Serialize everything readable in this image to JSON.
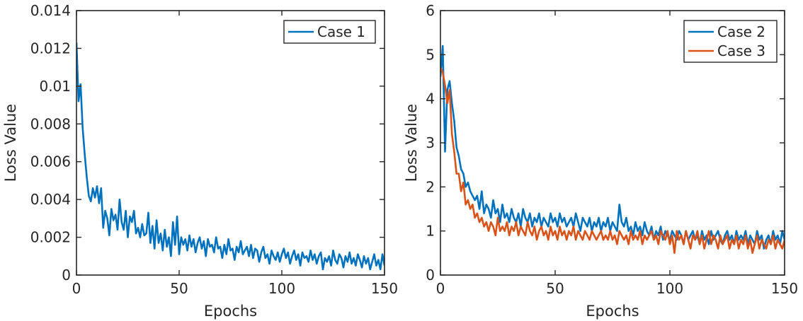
{
  "chart_data": [
    {
      "type": "line",
      "xlabel": "Epochs",
      "ylabel": "Loss Value",
      "xlim": [
        0,
        150
      ],
      "ylim": [
        0,
        0.014
      ],
      "xticks": [
        0,
        50,
        100,
        150
      ],
      "xtick_labels": [
        "0",
        "50",
        "100",
        "150"
      ],
      "yticks": [
        0,
        0.002,
        0.004,
        0.006,
        0.008,
        0.01,
        0.012,
        0.014
      ],
      "ytick_labels": [
        "0",
        "0.002",
        "0.004",
        "0.006",
        "0.008",
        "0.01",
        "0.012",
        "0.014"
      ],
      "grid": false,
      "legend_position": "top-right",
      "series": [
        {
          "name": "Case 1",
          "color": "#0072BD",
          "x": [
            0,
            1,
            2,
            3,
            4,
            5,
            6,
            7,
            8,
            9,
            10,
            11,
            12,
            13,
            14,
            15,
            16,
            17,
            18,
            19,
            20,
            21,
            22,
            23,
            24,
            25,
            26,
            27,
            28,
            29,
            30,
            31,
            32,
            33,
            34,
            35,
            36,
            37,
            38,
            39,
            40,
            41,
            42,
            43,
            44,
            45,
            46,
            47,
            48,
            49,
            50,
            51,
            52,
            53,
            54,
            55,
            56,
            57,
            58,
            59,
            60,
            61,
            62,
            63,
            64,
            65,
            66,
            67,
            68,
            69,
            70,
            71,
            72,
            73,
            74,
            75,
            76,
            77,
            78,
            79,
            80,
            81,
            82,
            83,
            84,
            85,
            86,
            87,
            88,
            89,
            90,
            91,
            92,
            93,
            94,
            95,
            96,
            97,
            98,
            99,
            100,
            101,
            102,
            103,
            104,
            105,
            106,
            107,
            108,
            109,
            110,
            111,
            112,
            113,
            114,
            115,
            116,
            117,
            118,
            119,
            120,
            121,
            122,
            123,
            124,
            125,
            126,
            127,
            128,
            129,
            130,
            131,
            132,
            133,
            134,
            135,
            136,
            137,
            138,
            139,
            140,
            141,
            142,
            143,
            144,
            145,
            146,
            147,
            148,
            149,
            150
          ],
          "y": [
            0.0123,
            0.0092,
            0.0101,
            0.0078,
            0.0064,
            0.0052,
            0.0042,
            0.0039,
            0.0046,
            0.0041,
            0.0047,
            0.0038,
            0.0046,
            0.0025,
            0.0034,
            0.003,
            0.0021,
            0.0035,
            0.0029,
            0.0032,
            0.0024,
            0.004,
            0.0028,
            0.0024,
            0.0034,
            0.002,
            0.0031,
            0.0028,
            0.0034,
            0.0022,
            0.0025,
            0.002,
            0.0027,
            0.0021,
            0.0022,
            0.0033,
            0.0017,
            0.0026,
            0.0014,
            0.0029,
            0.0017,
            0.0022,
            0.0013,
            0.0024,
            0.0015,
            0.002,
            0.001,
            0.0028,
            0.0016,
            0.0031,
            0.0011,
            0.002,
            0.0016,
            0.0019,
            0.0013,
            0.0021,
            0.0015,
            0.0019,
            0.0012,
            0.0017,
            0.002,
            0.0014,
            0.0018,
            0.001,
            0.0019,
            0.0015,
            0.0016,
            0.0012,
            0.002,
            0.0014,
            0.0015,
            0.0009,
            0.0016,
            0.0011,
            0.0019,
            0.0013,
            0.0014,
            0.0008,
            0.0015,
            0.0012,
            0.0018,
            0.0011,
            0.0013,
            0.0015,
            0.001,
            0.0016,
            0.0009,
            0.0014,
            0.0013,
            0.0007,
            0.0012,
            0.0015,
            0.0009,
            0.0011,
            0.0006,
            0.0013,
            0.001,
            0.0008,
            0.0012,
            0.0007,
            0.0011,
            0.0014,
            0.0009,
            0.0012,
            0.0006,
            0.001,
            0.0013,
            0.0008,
            0.0011,
            0.0005,
            0.0012,
            0.0009,
            0.001,
            0.0007,
            0.0013,
            0.0008,
            0.0011,
            0.0006,
            0.001,
            0.0012,
            0.0003,
            0.0009,
            0.0007,
            0.001,
            0.0005,
            0.0013,
            0.0008,
            0.0006,
            0.0011,
            0.0009,
            0.0004,
            0.001,
            0.0007,
            0.0012,
            0.0006,
            0.0009,
            0.0005,
            0.0011,
            0.0008,
            0.0004,
            0.001,
            0.0006,
            0.0009,
            0.0003,
            0.0007,
            0.0011,
            0.0005,
            0.0008,
            0.0003,
            0.0011,
            0.0005
          ]
        }
      ]
    },
    {
      "type": "line",
      "xlabel": "Epochs",
      "ylabel": "Loss Value",
      "xlim": [
        0,
        150
      ],
      "ylim": [
        0,
        6
      ],
      "xticks": [
        0,
        50,
        100,
        150
      ],
      "xtick_labels": [
        "0",
        "50",
        "100",
        "150"
      ],
      "yticks": [
        0,
        1,
        2,
        3,
        4,
        5,
        6
      ],
      "ytick_labels": [
        "0",
        "1",
        "2",
        "3",
        "4",
        "5",
        "6"
      ],
      "grid": false,
      "legend_position": "top-right",
      "series": [
        {
          "name": "Case 2",
          "color": "#0072BD",
          "x": [
            0,
            1,
            2,
            3,
            4,
            5,
            6,
            7,
            8,
            9,
            10,
            11,
            12,
            13,
            14,
            15,
            16,
            17,
            18,
            19,
            20,
            21,
            22,
            23,
            24,
            25,
            26,
            27,
            28,
            29,
            30,
            31,
            32,
            33,
            34,
            35,
            36,
            37,
            38,
            39,
            40,
            41,
            42,
            43,
            44,
            45,
            46,
            47,
            48,
            49,
            50,
            51,
            52,
            53,
            54,
            55,
            56,
            57,
            58,
            59,
            60,
            61,
            62,
            63,
            64,
            65,
            66,
            67,
            68,
            69,
            70,
            71,
            72,
            73,
            74,
            75,
            76,
            77,
            78,
            79,
            80,
            81,
            82,
            83,
            84,
            85,
            86,
            87,
            88,
            89,
            90,
            91,
            92,
            93,
            94,
            95,
            96,
            97,
            98,
            99,
            100,
            101,
            102,
            103,
            104,
            105,
            106,
            107,
            108,
            109,
            110,
            111,
            112,
            113,
            114,
            115,
            116,
            117,
            118,
            119,
            120,
            121,
            122,
            123,
            124,
            125,
            126,
            127,
            128,
            129,
            130,
            131,
            132,
            133,
            134,
            135,
            136,
            137,
            138,
            139,
            140,
            141,
            142,
            143,
            144,
            145,
            146,
            147,
            148,
            149,
            150
          ],
          "y": [
            4.5,
            5.2,
            2.8,
            4.2,
            4.4,
            3.9,
            3.5,
            2.9,
            2.7,
            2.4,
            2.3,
            2.0,
            2.1,
            1.9,
            1.8,
            1.7,
            1.8,
            1.5,
            1.9,
            1.4,
            1.6,
            1.5,
            1.3,
            1.7,
            1.4,
            1.5,
            1.2,
            1.6,
            1.3,
            1.4,
            1.2,
            1.5,
            1.3,
            1.2,
            1.4,
            1.1,
            1.5,
            1.3,
            1.2,
            1.4,
            1.1,
            1.3,
            1.2,
            1.4,
            1.1,
            1.3,
            1.2,
            1.1,
            1.4,
            1.2,
            1.3,
            1.1,
            1.4,
            1.2,
            1.3,
            1.1,
            1.2,
            1.3,
            1.1,
            1.4,
            1.2,
            1.0,
            1.3,
            1.2,
            1.1,
            1.3,
            1.0,
            1.2,
            1.1,
            1.3,
            1.0,
            1.2,
            1.1,
            1.3,
            1.0,
            1.2,
            1.1,
            1.0,
            1.6,
            1.2,
            1.1,
            1.3,
            1.0,
            1.1,
            0.9,
            1.2,
            1.0,
            1.1,
            0.9,
            1.2,
            1.0,
            0.9,
            1.1,
            0.8,
            1.0,
            0.9,
            1.1,
            0.8,
            1.0,
            0.9,
            0.8,
            1.0,
            0.9,
            0.8,
            1.0,
            0.9,
            0.7,
            1.0,
            0.8,
            0.9,
            1.0,
            0.8,
            0.9,
            0.7,
            1.0,
            0.8,
            0.9,
            0.7,
            1.0,
            0.8,
            0.9,
            1.0,
            0.8,
            0.7,
            0.9,
            1.0,
            0.8,
            0.9,
            0.7,
            1.0,
            0.8,
            0.9,
            0.8,
            1.0,
            0.7,
            0.9,
            0.8,
            0.7,
            1.0,
            0.8,
            0.9,
            0.6,
            0.8,
            0.9,
            0.7,
            1.0,
            0.8,
            0.9,
            0.7,
            1.0,
            0.8
          ]
        },
        {
          "name": "Case 3",
          "color": "#D95319",
          "x": [
            0,
            1,
            2,
            3,
            4,
            5,
            6,
            7,
            8,
            9,
            10,
            11,
            12,
            13,
            14,
            15,
            16,
            17,
            18,
            19,
            20,
            21,
            22,
            23,
            24,
            25,
            26,
            27,
            28,
            29,
            30,
            31,
            32,
            33,
            34,
            35,
            36,
            37,
            38,
            39,
            40,
            41,
            42,
            43,
            44,
            45,
            46,
            47,
            48,
            49,
            50,
            51,
            52,
            53,
            54,
            55,
            56,
            57,
            58,
            59,
            60,
            61,
            62,
            63,
            64,
            65,
            66,
            67,
            68,
            69,
            70,
            71,
            72,
            73,
            74,
            75,
            76,
            77,
            78,
            79,
            80,
            81,
            82,
            83,
            84,
            85,
            86,
            87,
            88,
            89,
            90,
            91,
            92,
            93,
            94,
            95,
            96,
            97,
            98,
            99,
            100,
            101,
            102,
            103,
            104,
            105,
            106,
            107,
            108,
            109,
            110,
            111,
            112,
            113,
            114,
            115,
            116,
            117,
            118,
            119,
            120,
            121,
            122,
            123,
            124,
            125,
            126,
            127,
            128,
            129,
            130,
            131,
            132,
            133,
            134,
            135,
            136,
            137,
            138,
            139,
            140,
            141,
            142,
            143,
            144,
            145,
            146,
            147,
            148,
            149,
            150
          ],
          "y": [
            4.7,
            4.6,
            4.3,
            3.9,
            4.2,
            3.2,
            2.8,
            2.3,
            2.3,
            1.9,
            2.1,
            1.6,
            1.7,
            1.5,
            1.6,
            1.3,
            1.4,
            1.2,
            1.3,
            1.1,
            1.2,
            1.0,
            1.2,
            1.1,
            0.9,
            1.3,
            1.0,
            1.1,
            1.0,
            1.2,
            0.9,
            1.1,
            1.0,
            1.2,
            0.9,
            1.1,
            1.0,
            0.9,
            1.2,
            1.0,
            0.9,
            1.1,
            0.8,
            1.0,
            1.1,
            0.9,
            1.0,
            0.8,
            1.1,
            0.9,
            1.0,
            0.8,
            1.1,
            0.9,
            1.0,
            0.8,
            1.0,
            0.9,
            1.1,
            0.8,
            1.0,
            0.9,
            0.8,
            1.0,
            0.9,
            0.8,
            1.0,
            0.9,
            0.8,
            0.9,
            1.0,
            0.8,
            0.9,
            0.8,
            1.0,
            0.8,
            0.9,
            0.7,
            1.0,
            0.9,
            0.8,
            0.9,
            0.7,
            1.0,
            0.8,
            0.9,
            0.8,
            1.0,
            0.7,
            0.9,
            0.8,
            0.9,
            1.0,
            0.8,
            0.9,
            0.7,
            1.0,
            0.9,
            0.8,
            1.0,
            0.7,
            0.9,
            0.5,
            1.0,
            0.8,
            0.9,
            0.7,
            1.0,
            0.8,
            0.6,
            0.9,
            0.8,
            1.0,
            0.7,
            0.9,
            0.6,
            0.8,
            1.0,
            0.7,
            0.9,
            0.8,
            0.6,
            0.9,
            0.7,
            0.8,
            0.9,
            0.6,
            0.8,
            0.7,
            0.9,
            0.6,
            0.8,
            0.7,
            0.9,
            0.6,
            0.8,
            0.5,
            0.7,
            0.9,
            0.6,
            0.8,
            0.7,
            0.6,
            0.8,
            0.7,
            0.9,
            0.6,
            0.8,
            0.7,
            0.6,
            0.8
          ]
        }
      ]
    }
  ]
}
